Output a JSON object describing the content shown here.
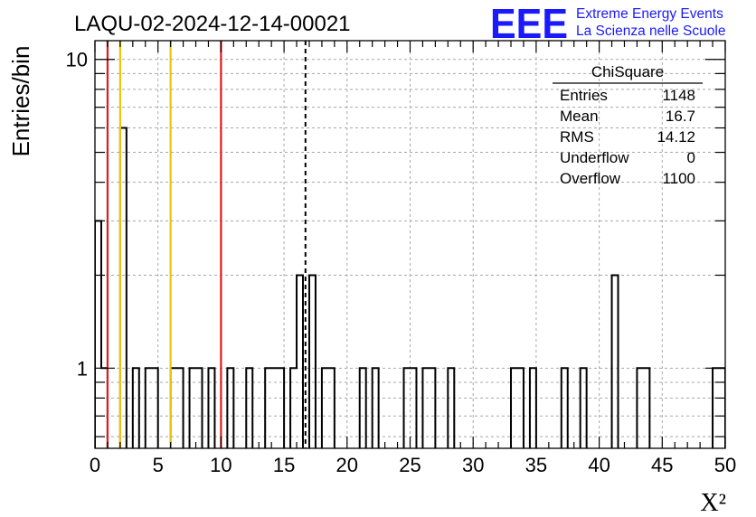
{
  "chart_data": {
    "type": "bar",
    "title": "LAQU-02-2024-12-14-00021",
    "xlabel": "X²",
    "ylabel": "Entries/bin",
    "xlim": [
      0,
      50
    ],
    "ylim": [
      0.55,
      11.5
    ],
    "y_scale": "log",
    "grid": true,
    "bin_width": 0.5,
    "x_ticks": [
      "0",
      "5",
      "10",
      "15",
      "20",
      "25",
      "30",
      "35",
      "40",
      "45",
      "50"
    ],
    "y_ticks": [
      "1",
      "10"
    ],
    "bins": [
      {
        "x": 0.0,
        "y": 3
      },
      {
        "x": 0.5,
        "y": 1
      },
      {
        "x": 2.0,
        "y": 6
      },
      {
        "x": 3.0,
        "y": 1
      },
      {
        "x": 4.0,
        "y": 1
      },
      {
        "x": 4.5,
        "y": 1
      },
      {
        "x": 6.0,
        "y": 1
      },
      {
        "x": 6.5,
        "y": 1
      },
      {
        "x": 7.5,
        "y": 1
      },
      {
        "x": 8.0,
        "y": 1
      },
      {
        "x": 9.0,
        "y": 1
      },
      {
        "x": 10.5,
        "y": 1
      },
      {
        "x": 12.0,
        "y": 1
      },
      {
        "x": 13.5,
        "y": 1
      },
      {
        "x": 14.0,
        "y": 1
      },
      {
        "x": 14.5,
        "y": 1
      },
      {
        "x": 15.5,
        "y": 1
      },
      {
        "x": 16.0,
        "y": 2
      },
      {
        "x": 17.0,
        "y": 2
      },
      {
        "x": 18.0,
        "y": 1
      },
      {
        "x": 18.5,
        "y": 1
      },
      {
        "x": 21.0,
        "y": 1
      },
      {
        "x": 22.0,
        "y": 1
      },
      {
        "x": 24.5,
        "y": 1
      },
      {
        "x": 25.0,
        "y": 1
      },
      {
        "x": 26.0,
        "y": 1
      },
      {
        "x": 26.5,
        "y": 1
      },
      {
        "x": 28.0,
        "y": 1
      },
      {
        "x": 33.0,
        "y": 1
      },
      {
        "x": 33.5,
        "y": 1
      },
      {
        "x": 34.5,
        "y": 1
      },
      {
        "x": 37.0,
        "y": 1
      },
      {
        "x": 38.5,
        "y": 1
      },
      {
        "x": 41.0,
        "y": 2
      },
      {
        "x": 43.0,
        "y": 1
      },
      {
        "x": 43.5,
        "y": 1
      },
      {
        "x": 49.0,
        "y": 1
      },
      {
        "x": 49.5,
        "y": 1
      }
    ],
    "reference_lines": [
      {
        "x": 1.0,
        "color": "#d81e1e",
        "style": "solid"
      },
      {
        "x": 2.0,
        "color": "#f0c20a",
        "style": "solid"
      },
      {
        "x": 6.0,
        "color": "#f0c20a",
        "style": "solid"
      },
      {
        "x": 10.0,
        "color": "#d81e1e",
        "style": "solid"
      },
      {
        "x": 16.7,
        "color": "#000000",
        "style": "dashed"
      }
    ],
    "stats_box": {
      "title": "ChiSquare",
      "rows": [
        {
          "label": "Entries",
          "value": "1148"
        },
        {
          "label": "Mean",
          "value": "16.7"
        },
        {
          "label": "RMS",
          "value": "14.12"
        },
        {
          "label": "Underflow",
          "value": "0"
        },
        {
          "label": "Overflow",
          "value": "1100"
        }
      ]
    }
  },
  "logo": {
    "letters": "EEE",
    "line1": "Extreme Energy Events",
    "line2": "La Scienza nelle Scuole",
    "color": "#1a1aff"
  }
}
